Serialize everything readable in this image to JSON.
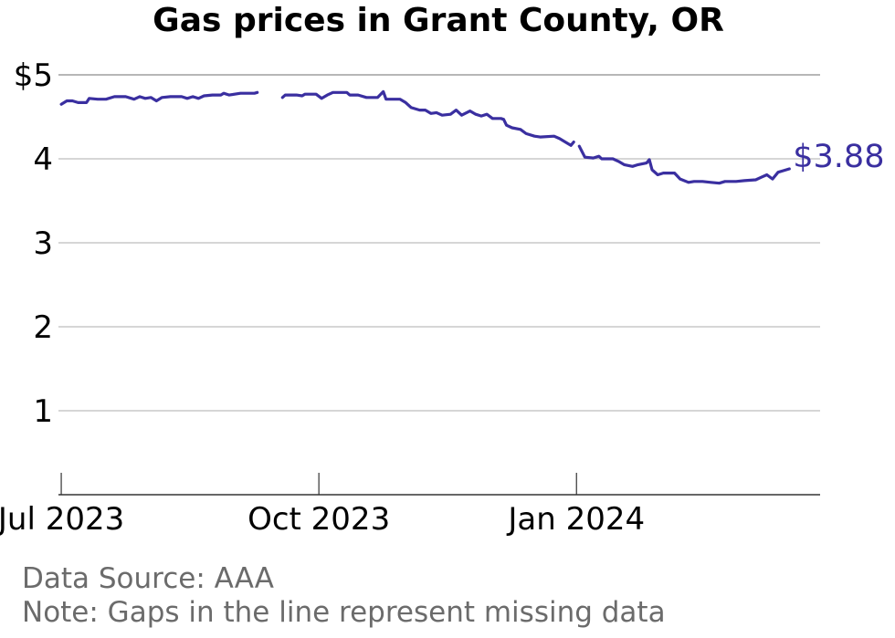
{
  "chart_data": {
    "type": "line",
    "title": "Gas prices in Grant County, OR",
    "xlabel": "",
    "ylabel": "",
    "x_start": "2023-06-30",
    "x_end": "2024-03-28",
    "ylim": [
      0,
      5
    ],
    "grid": true,
    "y_ticks": [
      {
        "value": 1,
        "label": "1"
      },
      {
        "value": 2,
        "label": "2"
      },
      {
        "value": 3,
        "label": "3"
      },
      {
        "value": 4,
        "label": "4"
      },
      {
        "value": 5,
        "label": "$5"
      }
    ],
    "x_ticks": [
      {
        "date": "2023-07-01",
        "label": "Jul 2023"
      },
      {
        "date": "2023-10-01",
        "label": "Oct 2023"
      },
      {
        "date": "2024-01-01",
        "label": "Jan 2024"
      }
    ],
    "end_label": "$3.88",
    "line_color": "#3a2fa0",
    "series": [
      {
        "segments": [
          [
            [
              "2023-07-01",
              4.65
            ],
            [
              "2023-07-03",
              4.69
            ],
            [
              "2023-07-05",
              4.69
            ],
            [
              "2023-07-07",
              4.67
            ],
            [
              "2023-07-10",
              4.67
            ],
            [
              "2023-07-11",
              4.72
            ],
            [
              "2023-07-14",
              4.71
            ],
            [
              "2023-07-17",
              4.71
            ],
            [
              "2023-07-20",
              4.74
            ],
            [
              "2023-07-24",
              4.74
            ],
            [
              "2023-07-27",
              4.71
            ],
            [
              "2023-07-29",
              4.74
            ],
            [
              "2023-07-31",
              4.72
            ],
            [
              "2023-08-02",
              4.73
            ],
            [
              "2023-08-04",
              4.69
            ],
            [
              "2023-08-06",
              4.73
            ],
            [
              "2023-08-09",
              4.74
            ],
            [
              "2023-08-13",
              4.74
            ],
            [
              "2023-08-15",
              4.72
            ],
            [
              "2023-08-17",
              4.74
            ],
            [
              "2023-08-19",
              4.72
            ],
            [
              "2023-08-21",
              4.75
            ],
            [
              "2023-08-24",
              4.76
            ],
            [
              "2023-08-27",
              4.76
            ],
            [
              "2023-08-28",
              4.78
            ],
            [
              "2023-08-30",
              4.76
            ],
            [
              "2023-09-03",
              4.78
            ],
            [
              "2023-09-08",
              4.78
            ],
            [
              "2023-09-09",
              4.79
            ]
          ],
          [
            [
              "2023-09-18",
              4.73
            ],
            [
              "2023-09-19",
              4.76
            ],
            [
              "2023-09-23",
              4.76
            ],
            [
              "2023-09-25",
              4.75
            ],
            [
              "2023-09-26",
              4.77
            ],
            [
              "2023-09-30",
              4.77
            ],
            [
              "2023-10-02",
              4.72
            ],
            [
              "2023-10-04",
              4.76
            ],
            [
              "2023-10-06",
              4.79
            ],
            [
              "2023-10-11",
              4.79
            ],
            [
              "2023-10-12",
              4.76
            ],
            [
              "2023-10-15",
              4.76
            ],
            [
              "2023-10-18",
              4.73
            ],
            [
              "2023-10-22",
              4.73
            ],
            [
              "2023-10-24",
              4.8
            ],
            [
              "2023-10-25",
              4.71
            ],
            [
              "2023-10-30",
              4.71
            ],
            [
              "2023-11-01",
              4.67
            ],
            [
              "2023-11-03",
              4.61
            ],
            [
              "2023-11-06",
              4.58
            ],
            [
              "2023-11-08",
              4.58
            ],
            [
              "2023-11-10",
              4.54
            ],
            [
              "2023-11-12",
              4.55
            ],
            [
              "2023-11-14",
              4.52
            ],
            [
              "2023-11-17",
              4.53
            ],
            [
              "2023-11-19",
              4.58
            ],
            [
              "2023-11-21",
              4.52
            ],
            [
              "2023-11-24",
              4.57
            ],
            [
              "2023-11-26",
              4.53
            ],
            [
              "2023-11-28",
              4.51
            ],
            [
              "2023-11-30",
              4.53
            ],
            [
              "2023-12-02",
              4.48
            ],
            [
              "2023-12-05",
              4.48
            ],
            [
              "2023-12-06",
              4.47
            ],
            [
              "2023-12-07",
              4.4
            ],
            [
              "2023-12-09",
              4.37
            ],
            [
              "2023-12-12",
              4.35
            ],
            [
              "2023-12-14",
              4.3
            ],
            [
              "2023-12-17",
              4.27
            ],
            [
              "2023-12-19",
              4.26
            ],
            [
              "2023-12-24",
              4.27
            ],
            [
              "2023-12-26",
              4.24
            ],
            [
              "2023-12-28",
              4.2
            ],
            [
              "2023-12-30",
              4.16
            ],
            [
              "2023-12-31",
              4.2
            ]
          ],
          [
            [
              "2024-01-02",
              4.15
            ],
            [
              "2024-01-04",
              4.02
            ],
            [
              "2024-01-07",
              4.01
            ],
            [
              "2024-01-09",
              4.03
            ],
            [
              "2024-01-10",
              4.0
            ],
            [
              "2024-01-14",
              4.0
            ],
            [
              "2024-01-16",
              3.97
            ],
            [
              "2024-01-18",
              3.93
            ],
            [
              "2024-01-21",
              3.91
            ],
            [
              "2024-01-23",
              3.93
            ],
            [
              "2024-01-26",
              3.95
            ],
            [
              "2024-01-27",
              3.99
            ],
            [
              "2024-01-28",
              3.87
            ],
            [
              "2024-01-30",
              3.81
            ],
            [
              "2024-02-01",
              3.83
            ],
            [
              "2024-02-05",
              3.83
            ],
            [
              "2024-02-07",
              3.76
            ],
            [
              "2024-02-10",
              3.72
            ],
            [
              "2024-02-12",
              3.73
            ],
            [
              "2024-02-15",
              3.73
            ],
            [
              "2024-02-18",
              3.72
            ],
            [
              "2024-02-21",
              3.71
            ],
            [
              "2024-02-23",
              3.73
            ],
            [
              "2024-02-27",
              3.73
            ],
            [
              "2024-03-01",
              3.74
            ],
            [
              "2024-03-05",
              3.75
            ],
            [
              "2024-03-07",
              3.78
            ],
            [
              "2024-03-09",
              3.81
            ],
            [
              "2024-03-11",
              3.76
            ],
            [
              "2024-03-13",
              3.84
            ],
            [
              "2024-03-15",
              3.86
            ],
            [
              "2024-03-17",
              3.88
            ]
          ]
        ]
      }
    ]
  },
  "footer": {
    "source": "Data Source: AAA",
    "note": "Note: Gaps in the line represent missing data"
  }
}
